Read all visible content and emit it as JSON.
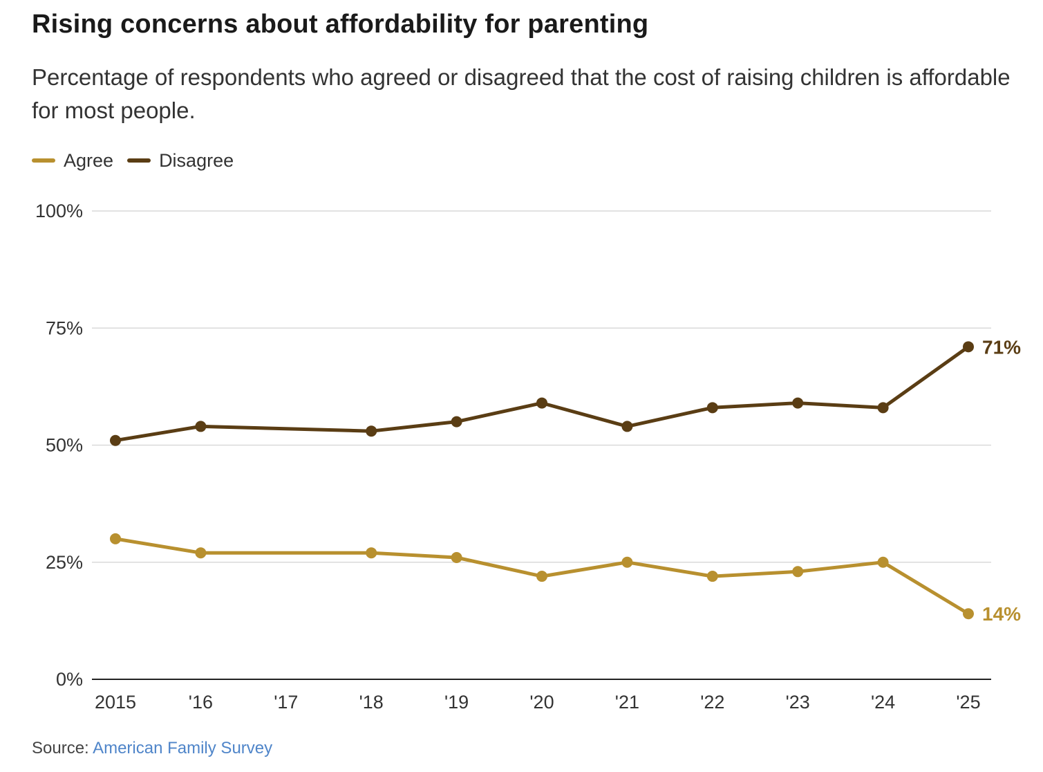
{
  "header": {
    "title": "Rising concerns about affordability for parenting",
    "subtitle": "Percentage of respondents who agreed or disagreed that the cost of raising children is affordable for most people."
  },
  "legend": [
    {
      "label": "Agree",
      "color": "#b8902f"
    },
    {
      "label": "Disagree",
      "color": "#5a3d14"
    }
  ],
  "source": {
    "prefix": "Source: ",
    "link_text": "American Family Survey"
  },
  "chart_data": {
    "type": "line",
    "title": "Rising concerns about affordability for parenting",
    "x": [
      2015,
      2016,
      2017,
      2018,
      2019,
      2020,
      2021,
      2022,
      2023,
      2024,
      2025
    ],
    "x_tick_labels": [
      "2015",
      "'16",
      "'17",
      "'18",
      "'19",
      "'20",
      "'21",
      "'22",
      "'23",
      "'24",
      "'25"
    ],
    "y_tick_values": [
      0,
      25,
      50,
      75,
      100
    ],
    "y_tick_labels": [
      "0%",
      "25%",
      "50%",
      "75%",
      "100%"
    ],
    "ylim": [
      0,
      100
    ],
    "xlabel": "",
    "ylabel": "",
    "grid": true,
    "legend_position": "top-left",
    "series": [
      {
        "name": "Agree",
        "color": "#b8902f",
        "points": [
          {
            "x": 2015,
            "y": 30
          },
          {
            "x": 2016,
            "y": 27
          },
          {
            "x": 2018,
            "y": 27
          },
          {
            "x": 2019,
            "y": 26
          },
          {
            "x": 2020,
            "y": 22
          },
          {
            "x": 2021,
            "y": 25
          },
          {
            "x": 2022,
            "y": 22
          },
          {
            "x": 2023,
            "y": 23
          },
          {
            "x": 2024,
            "y": 25
          },
          {
            "x": 2025,
            "y": 14
          }
        ],
        "end_label": "14%"
      },
      {
        "name": "Disagree",
        "color": "#5a3d14",
        "points": [
          {
            "x": 2015,
            "y": 51
          },
          {
            "x": 2016,
            "y": 54
          },
          {
            "x": 2018,
            "y": 53
          },
          {
            "x": 2019,
            "y": 55
          },
          {
            "x": 2020,
            "y": 59
          },
          {
            "x": 2021,
            "y": 54
          },
          {
            "x": 2022,
            "y": 58
          },
          {
            "x": 2023,
            "y": 59
          },
          {
            "x": 2024,
            "y": 58
          },
          {
            "x": 2025,
            "y": 71
          }
        ],
        "end_label": "71%"
      }
    ]
  }
}
